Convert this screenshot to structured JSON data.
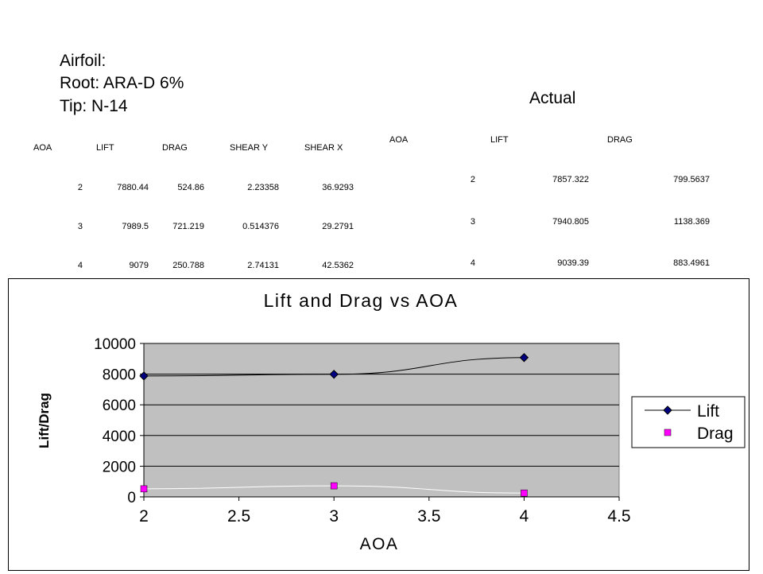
{
  "header": {
    "line1": "Airfoil:",
    "line2": "Root:  ARA-D 6%",
    "line3": "Tip:  N-14"
  },
  "computed_table": {
    "columns": [
      "AOA",
      "LIFT",
      "DRAG",
      "SHEAR Y",
      "SHEAR X"
    ],
    "rows": [
      [
        "2",
        "7880.44",
        "524.86",
        "2.23358",
        "36.9293"
      ],
      [
        "3",
        "7989.5",
        "721.219",
        "0.514376",
        "29.2791"
      ],
      [
        "4",
        "9079",
        "250.788",
        "2.74131",
        "42.5362"
      ]
    ]
  },
  "actual_table": {
    "title": "Actual",
    "columns": [
      "AOA",
      "LIFT",
      "DRAG"
    ],
    "rows": [
      [
        "2",
        "7857.322",
        "799.5637"
      ],
      [
        "3",
        "7940.805",
        "1138.369"
      ],
      [
        "4",
        "9039.39",
        "883.4961"
      ]
    ]
  },
  "chart_data": {
    "type": "line",
    "title": "Lift and Drag vs AOA",
    "xlabel": "AOA",
    "ylabel": "Lift/Drag",
    "xlim": [
      2,
      4.5
    ],
    "ylim": [
      0,
      10000
    ],
    "xticks": [
      "2",
      "2.5",
      "3",
      "3.5",
      "4",
      "4.5"
    ],
    "yticks": [
      "0",
      "2000",
      "4000",
      "6000",
      "8000",
      "10000"
    ],
    "x": [
      2,
      3,
      4
    ],
    "series": [
      {
        "name": "Lift",
        "values": [
          7880.44,
          7989.5,
          9079
        ],
        "color": "#000080",
        "marker": "diamond"
      },
      {
        "name": "Drag",
        "values": [
          524.86,
          721.219,
          250.788
        ],
        "color": "#ff00ff",
        "marker": "square"
      }
    ],
    "plot_background": "#c0c0c0",
    "grid": true,
    "legend": "right"
  }
}
